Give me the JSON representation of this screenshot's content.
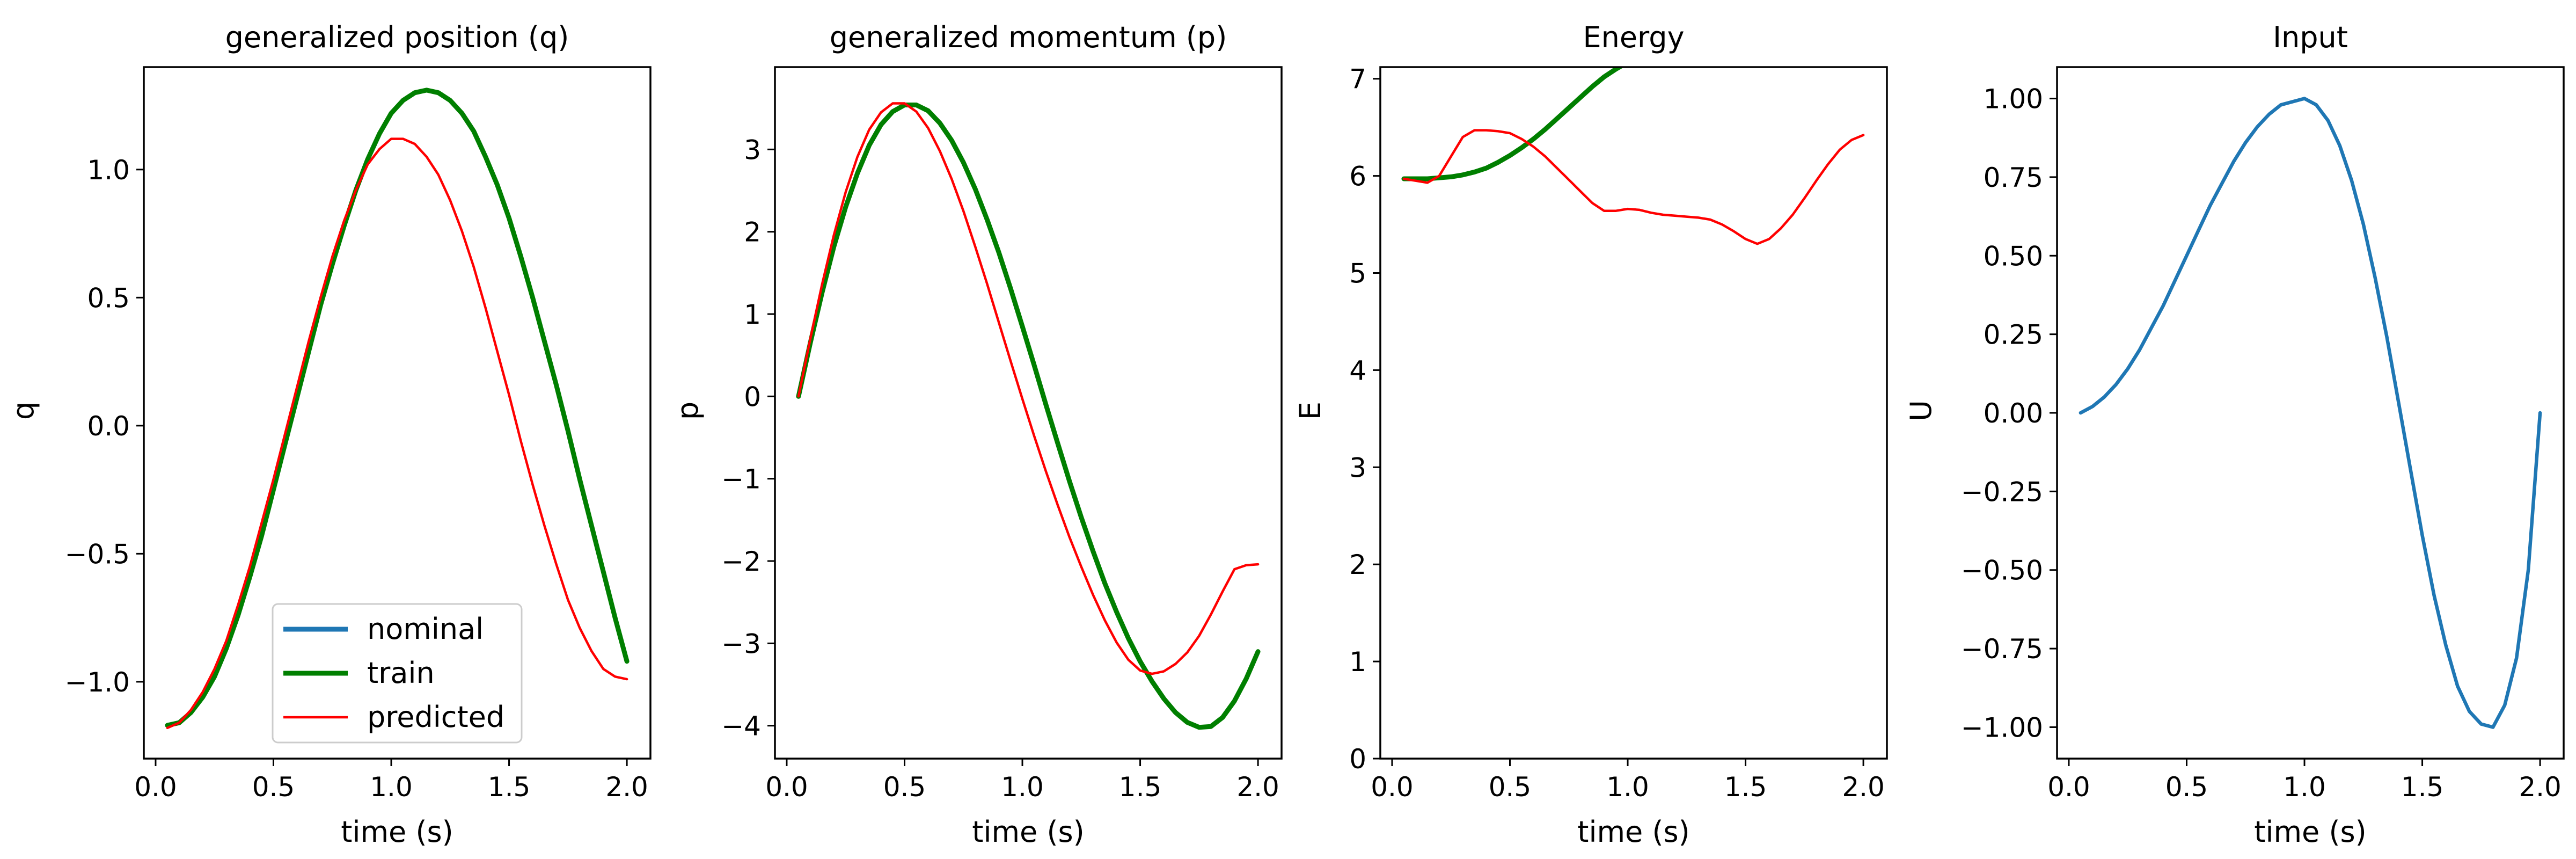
{
  "colors": {
    "nominal": "#1f77b4",
    "train": "#007f00",
    "predicted": "#ff0000",
    "input": "#1f77b4"
  },
  "legend": {
    "placement": "lower-center",
    "entries": [
      "nominal",
      "train",
      "predicted"
    ]
  },
  "chart_data": [
    {
      "type": "line",
      "title": "generalized position (q)",
      "xlabel": "time (s)",
      "ylabel": "q",
      "xlim": [
        -0.05,
        2.1
      ],
      "ylim": [
        -1.3,
        1.4
      ],
      "xticks": [
        0.0,
        0.5,
        1.0,
        1.5,
        2.0
      ],
      "xticklabels": [
        "0.0",
        "0.5",
        "1.0",
        "1.5",
        "2.0"
      ],
      "yticks": [
        -1.0,
        -0.5,
        0.0,
        0.5,
        1.0
      ],
      "yticklabels": [
        "−1.0",
        "−0.5",
        "0.0",
        "0.5",
        "1.0"
      ],
      "grid": false,
      "series": [
        {
          "name": "train",
          "color": "#007f00",
          "width": 9,
          "x": [
            0.05,
            0.1,
            0.15,
            0.2,
            0.25,
            0.3,
            0.35,
            0.4,
            0.45,
            0.5,
            0.55,
            0.6,
            0.65,
            0.7,
            0.75,
            0.8,
            0.85,
            0.9,
            0.95,
            1.0,
            1.05,
            1.1,
            1.15,
            1.2,
            1.25,
            1.3,
            1.35,
            1.4,
            1.45,
            1.5,
            1.55,
            1.6,
            1.65,
            1.7,
            1.75,
            1.8,
            1.85,
            1.9,
            1.95,
            2.0
          ],
          "y": [
            -1.17,
            -1.16,
            -1.12,
            -1.06,
            -0.98,
            -0.87,
            -0.74,
            -0.59,
            -0.43,
            -0.25,
            -0.07,
            0.11,
            0.29,
            0.47,
            0.63,
            0.78,
            0.92,
            1.04,
            1.14,
            1.22,
            1.27,
            1.3,
            1.31,
            1.3,
            1.27,
            1.22,
            1.15,
            1.05,
            0.94,
            0.81,
            0.66,
            0.5,
            0.33,
            0.16,
            -0.02,
            -0.21,
            -0.39,
            -0.57,
            -0.75,
            -0.92
          ]
        },
        {
          "name": "predicted",
          "color": "#ff0000",
          "width": 4.5,
          "x": [
            0.05,
            0.1,
            0.15,
            0.2,
            0.25,
            0.3,
            0.35,
            0.4,
            0.45,
            0.5,
            0.55,
            0.6,
            0.65,
            0.7,
            0.75,
            0.8,
            0.85,
            0.9,
            0.95,
            1.0,
            1.05,
            1.1,
            1.15,
            1.2,
            1.25,
            1.3,
            1.35,
            1.4,
            1.45,
            1.5,
            1.55,
            1.6,
            1.65,
            1.7,
            1.75,
            1.8,
            1.85,
            1.9,
            1.95,
            2.0
          ],
          "y": [
            -1.18,
            -1.16,
            -1.11,
            -1.04,
            -0.95,
            -0.84,
            -0.7,
            -0.55,
            -0.38,
            -0.21,
            -0.03,
            0.15,
            0.33,
            0.5,
            0.66,
            0.8,
            0.92,
            1.02,
            1.08,
            1.12,
            1.12,
            1.1,
            1.05,
            0.98,
            0.88,
            0.76,
            0.62,
            0.46,
            0.29,
            0.12,
            -0.06,
            -0.23,
            -0.39,
            -0.54,
            -0.68,
            -0.79,
            -0.88,
            -0.95,
            -0.98,
            -0.99
          ]
        }
      ]
    },
    {
      "type": "line",
      "title": "generalized momentum (p)",
      "xlabel": "time (s)",
      "ylabel": "p",
      "xlim": [
        -0.05,
        2.1
      ],
      "ylim": [
        -4.4,
        4.0
      ],
      "xticks": [
        0.0,
        0.5,
        1.0,
        1.5,
        2.0
      ],
      "xticklabels": [
        "0.0",
        "0.5",
        "1.0",
        "1.5",
        "2.0"
      ],
      "yticks": [
        -4,
        -3,
        -2,
        -1,
        0,
        1,
        2,
        3
      ],
      "yticklabels": [
        "−4",
        "−3",
        "−2",
        "−1",
        "0",
        "1",
        "2",
        "3"
      ],
      "grid": false,
      "series": [
        {
          "name": "train",
          "color": "#007f00",
          "width": 9,
          "x": [
            0.05,
            0.1,
            0.15,
            0.2,
            0.25,
            0.3,
            0.35,
            0.4,
            0.45,
            0.5,
            0.55,
            0.6,
            0.65,
            0.7,
            0.75,
            0.8,
            0.85,
            0.9,
            0.95,
            1.0,
            1.05,
            1.1,
            1.15,
            1.2,
            1.25,
            1.3,
            1.35,
            1.4,
            1.45,
            1.5,
            1.55,
            1.6,
            1.65,
            1.7,
            1.75,
            1.8,
            1.85,
            1.9,
            1.95,
            2.0
          ],
          "y": [
            0.0,
            0.65,
            1.26,
            1.82,
            2.3,
            2.71,
            3.05,
            3.3,
            3.46,
            3.54,
            3.54,
            3.47,
            3.32,
            3.11,
            2.84,
            2.52,
            2.15,
            1.75,
            1.31,
            0.85,
            0.38,
            -0.1,
            -0.57,
            -1.03,
            -1.47,
            -1.88,
            -2.27,
            -2.62,
            -2.94,
            -3.22,
            -3.46,
            -3.67,
            -3.84,
            -3.96,
            -4.02,
            -4.01,
            -3.9,
            -3.7,
            -3.43,
            -3.1
          ]
        },
        {
          "name": "predicted",
          "color": "#ff0000",
          "width": 4.5,
          "x": [
            0.05,
            0.1,
            0.15,
            0.2,
            0.25,
            0.3,
            0.35,
            0.4,
            0.45,
            0.5,
            0.55,
            0.6,
            0.65,
            0.7,
            0.75,
            0.8,
            0.85,
            0.9,
            0.95,
            1.0,
            1.05,
            1.1,
            1.15,
            1.2,
            1.25,
            1.3,
            1.35,
            1.4,
            1.45,
            1.5,
            1.55,
            1.6,
            1.65,
            1.7,
            1.75,
            1.8,
            1.85,
            1.9,
            1.95,
            2.0
          ],
          "y": [
            0.0,
            0.7,
            1.36,
            1.96,
            2.48,
            2.91,
            3.24,
            3.45,
            3.56,
            3.56,
            3.46,
            3.26,
            2.98,
            2.64,
            2.25,
            1.82,
            1.37,
            0.9,
            0.43,
            -0.03,
            -0.48,
            -0.91,
            -1.32,
            -1.71,
            -2.07,
            -2.41,
            -2.72,
            -2.99,
            -3.2,
            -3.33,
            -3.37,
            -3.34,
            -3.25,
            -3.11,
            -2.91,
            -2.65,
            -2.37,
            -2.1,
            -2.05,
            -2.04
          ]
        }
      ]
    },
    {
      "type": "line",
      "title": "Energy",
      "xlabel": "time (s)",
      "ylabel": "E",
      "xlim": [
        -0.05,
        2.1
      ],
      "ylim": [
        0,
        7.12
      ],
      "xticks": [
        0.0,
        0.5,
        1.0,
        1.5,
        2.0
      ],
      "xticklabels": [
        "0.0",
        "0.5",
        "1.0",
        "1.5",
        "2.0"
      ],
      "yticks": [
        0,
        1,
        2,
        3,
        4,
        5,
        6,
        7
      ],
      "yticklabels": [
        "0",
        "1",
        "2",
        "3",
        "4",
        "5",
        "6",
        "7"
      ],
      "grid": false,
      "series": [
        {
          "name": "train",
          "color": "#007f00",
          "width": 9,
          "x": [
            0.05,
            0.1,
            0.15,
            0.2,
            0.25,
            0.3,
            0.35,
            0.4,
            0.45,
            0.5,
            0.55,
            0.6,
            0.65,
            0.7,
            0.75,
            0.8,
            0.85,
            0.9,
            0.95,
            1.0,
            1.05
          ],
          "y": [
            5.97,
            5.97,
            5.97,
            5.98,
            5.99,
            6.01,
            6.04,
            6.08,
            6.14,
            6.21,
            6.29,
            6.38,
            6.48,
            6.59,
            6.7,
            6.81,
            6.92,
            7.02,
            7.1,
            7.17,
            7.22
          ]
        },
        {
          "name": "predicted",
          "color": "#ff0000",
          "width": 4.5,
          "x": [
            0.05,
            0.1,
            0.15,
            0.2,
            0.25,
            0.3,
            0.35,
            0.4,
            0.45,
            0.5,
            0.55,
            0.6,
            0.65,
            0.7,
            0.75,
            0.8,
            0.85,
            0.9,
            0.95,
            1.0,
            1.05,
            1.1,
            1.15,
            1.2,
            1.25,
            1.3,
            1.35,
            1.4,
            1.45,
            1.5,
            1.55,
            1.6,
            1.65,
            1.7,
            1.75,
            1.8,
            1.85,
            1.9,
            1.95,
            2.0
          ],
          "y": [
            5.97,
            5.95,
            5.93,
            6.0,
            6.2,
            6.4,
            6.47,
            6.47,
            6.46,
            6.44,
            6.38,
            6.3,
            6.2,
            6.08,
            5.96,
            5.84,
            5.72,
            5.64,
            5.64,
            5.66,
            5.65,
            5.62,
            5.6,
            5.59,
            5.58,
            5.57,
            5.55,
            5.5,
            5.43,
            5.35,
            5.3,
            5.35,
            5.46,
            5.6,
            5.77,
            5.95,
            6.12,
            6.27,
            6.37,
            6.42
          ]
        }
      ]
    },
    {
      "type": "line",
      "title": "Input",
      "xlabel": "time (s)",
      "ylabel": "U",
      "xlim": [
        -0.05,
        2.1
      ],
      "ylim": [
        -1.1,
        1.1
      ],
      "xticks": [
        0.0,
        0.5,
        1.0,
        1.5,
        2.0
      ],
      "xticklabels": [
        "0.0",
        "0.5",
        "1.0",
        "1.5",
        "2.0"
      ],
      "yticks": [
        -1.0,
        -0.75,
        -0.5,
        -0.25,
        0.0,
        0.25,
        0.5,
        0.75,
        1.0
      ],
      "yticklabels": [
        "−1.00",
        "−0.75",
        "−0.50",
        "−0.25",
        "0.00",
        "0.25",
        "0.50",
        "0.75",
        "1.00"
      ],
      "grid": false,
      "series": [
        {
          "name": "",
          "color": "#1f77b4",
          "width": 6.5,
          "x": [
            0.05,
            0.1,
            0.15,
            0.2,
            0.25,
            0.3,
            0.35,
            0.4,
            0.45,
            0.5,
            0.55,
            0.6,
            0.65,
            0.7,
            0.75,
            0.8,
            0.85,
            0.9,
            0.95,
            1.0,
            1.05,
            1.1,
            1.15,
            1.2,
            1.25,
            1.3,
            1.35,
            1.4,
            1.45,
            1.5,
            1.55,
            1.6,
            1.65,
            1.7,
            1.75,
            1.8,
            1.85,
            1.9,
            1.95,
            2.0
          ],
          "y": [
            0.0,
            0.02,
            0.05,
            0.09,
            0.14,
            0.2,
            0.27,
            0.34,
            0.42,
            0.5,
            0.58,
            0.66,
            0.73,
            0.8,
            0.86,
            0.91,
            0.95,
            0.98,
            0.99,
            1.0,
            0.98,
            0.93,
            0.85,
            0.74,
            0.6,
            0.43,
            0.24,
            0.03,
            -0.18,
            -0.39,
            -0.58,
            -0.74,
            -0.87,
            -0.95,
            -0.99,
            -1.0,
            -0.93,
            -0.78,
            -0.5,
            0.0
          ]
        }
      ]
    }
  ]
}
